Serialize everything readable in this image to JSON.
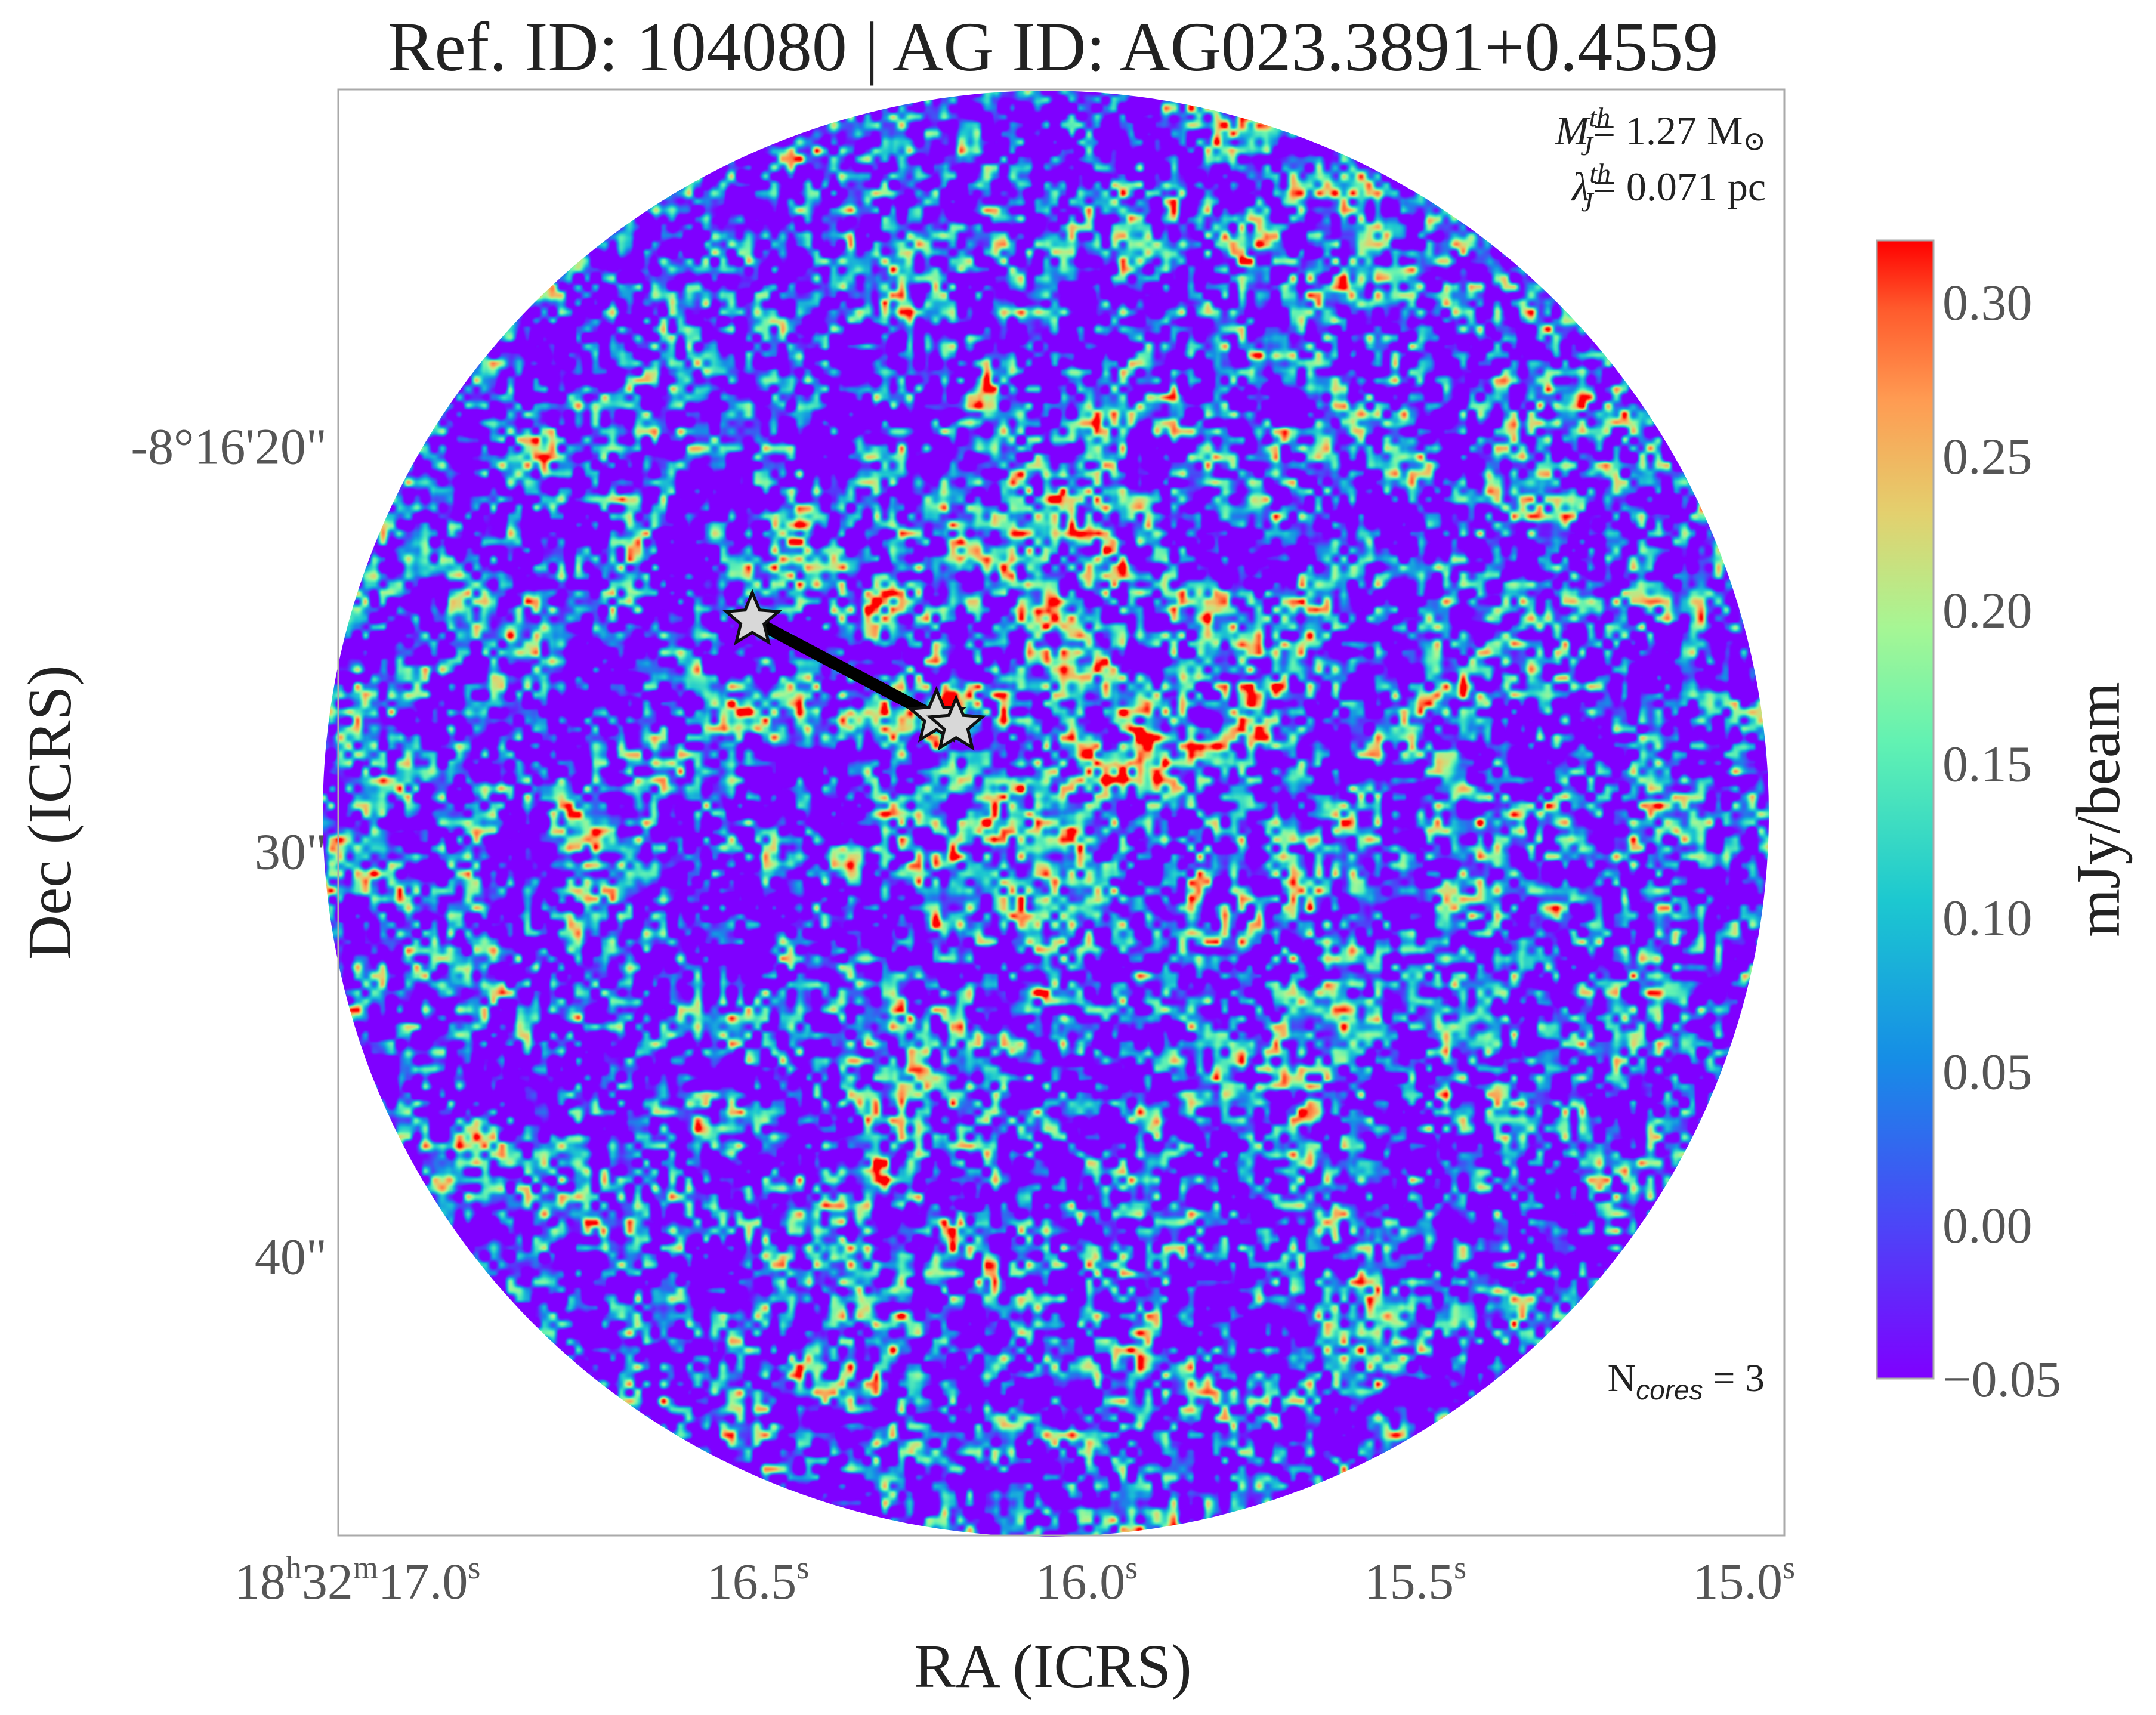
{
  "chart_data": {
    "type": "heatmap",
    "title": "Ref. ID: 104080 | AG ID: AG023.3891+0.4559",
    "xlabel": "RA (ICRS)",
    "ylabel": "Dec (ICRS)",
    "x_ticks": [
      {
        "value": 17.0,
        "label": "18h32m17.0s",
        "parts": [
          "18",
          "h",
          "32",
          "m",
          "17.0",
          "s"
        ]
      },
      {
        "value": 16.5,
        "label": "16.5s",
        "parts": [
          "16.5",
          "s"
        ]
      },
      {
        "value": 16.0,
        "label": "16.0s",
        "parts": [
          "16.0",
          "s"
        ]
      },
      {
        "value": 15.5,
        "label": "15.5s",
        "parts": [
          "15.5",
          "s"
        ]
      },
      {
        "value": 15.0,
        "label": "15.0s",
        "parts": [
          "15.0",
          "s"
        ]
      }
    ],
    "xlim": [
      17.2,
      15.0
    ],
    "y_ticks": [
      {
        "value": 20,
        "label": "-8°16'20\""
      },
      {
        "value": 30,
        "label": "30\""
      },
      {
        "value": 40,
        "label": "40\""
      }
    ],
    "ylim": [
      11.2,
      46.9
    ],
    "colorbar": {
      "label": "mJy/beam",
      "colormap": "rainbow",
      "min": -0.05,
      "max": 0.32,
      "ticks": [
        -0.05,
        0.0,
        0.05,
        0.1,
        0.15,
        0.2,
        0.25,
        0.3
      ],
      "tick_labels": [
        "−0.05",
        "0.00",
        "0.05",
        "0.10",
        "0.15",
        "0.20",
        "0.25",
        "0.30"
      ]
    },
    "annotations": {
      "mass_sym": "M",
      "mass_sup": "th",
      "mass_sub": "J",
      "mass_value": "= 1.27 M",
      "mass_unit_symbol": "⊙",
      "length_sym": "λ",
      "length_sup": "th",
      "length_sub": "J",
      "length_value": "= 0.071 pc",
      "ncores_prefix": "N",
      "ncores_sub": "cores",
      "ncores_value": " = 3"
    },
    "cores": [
      {
        "ra": 16.57,
        "dec": 24.3
      },
      {
        "ra": 16.29,
        "dec": 26.7
      },
      {
        "ra": 16.26,
        "dec": 26.9
      }
    ],
    "mst_edges": [
      [
        0,
        1
      ],
      [
        1,
        2
      ]
    ],
    "colors": {
      "background": "#ffffff",
      "frame": "#aaaaaa",
      "star_fill": "#d8d8d8",
      "edge": "#000000"
    }
  }
}
